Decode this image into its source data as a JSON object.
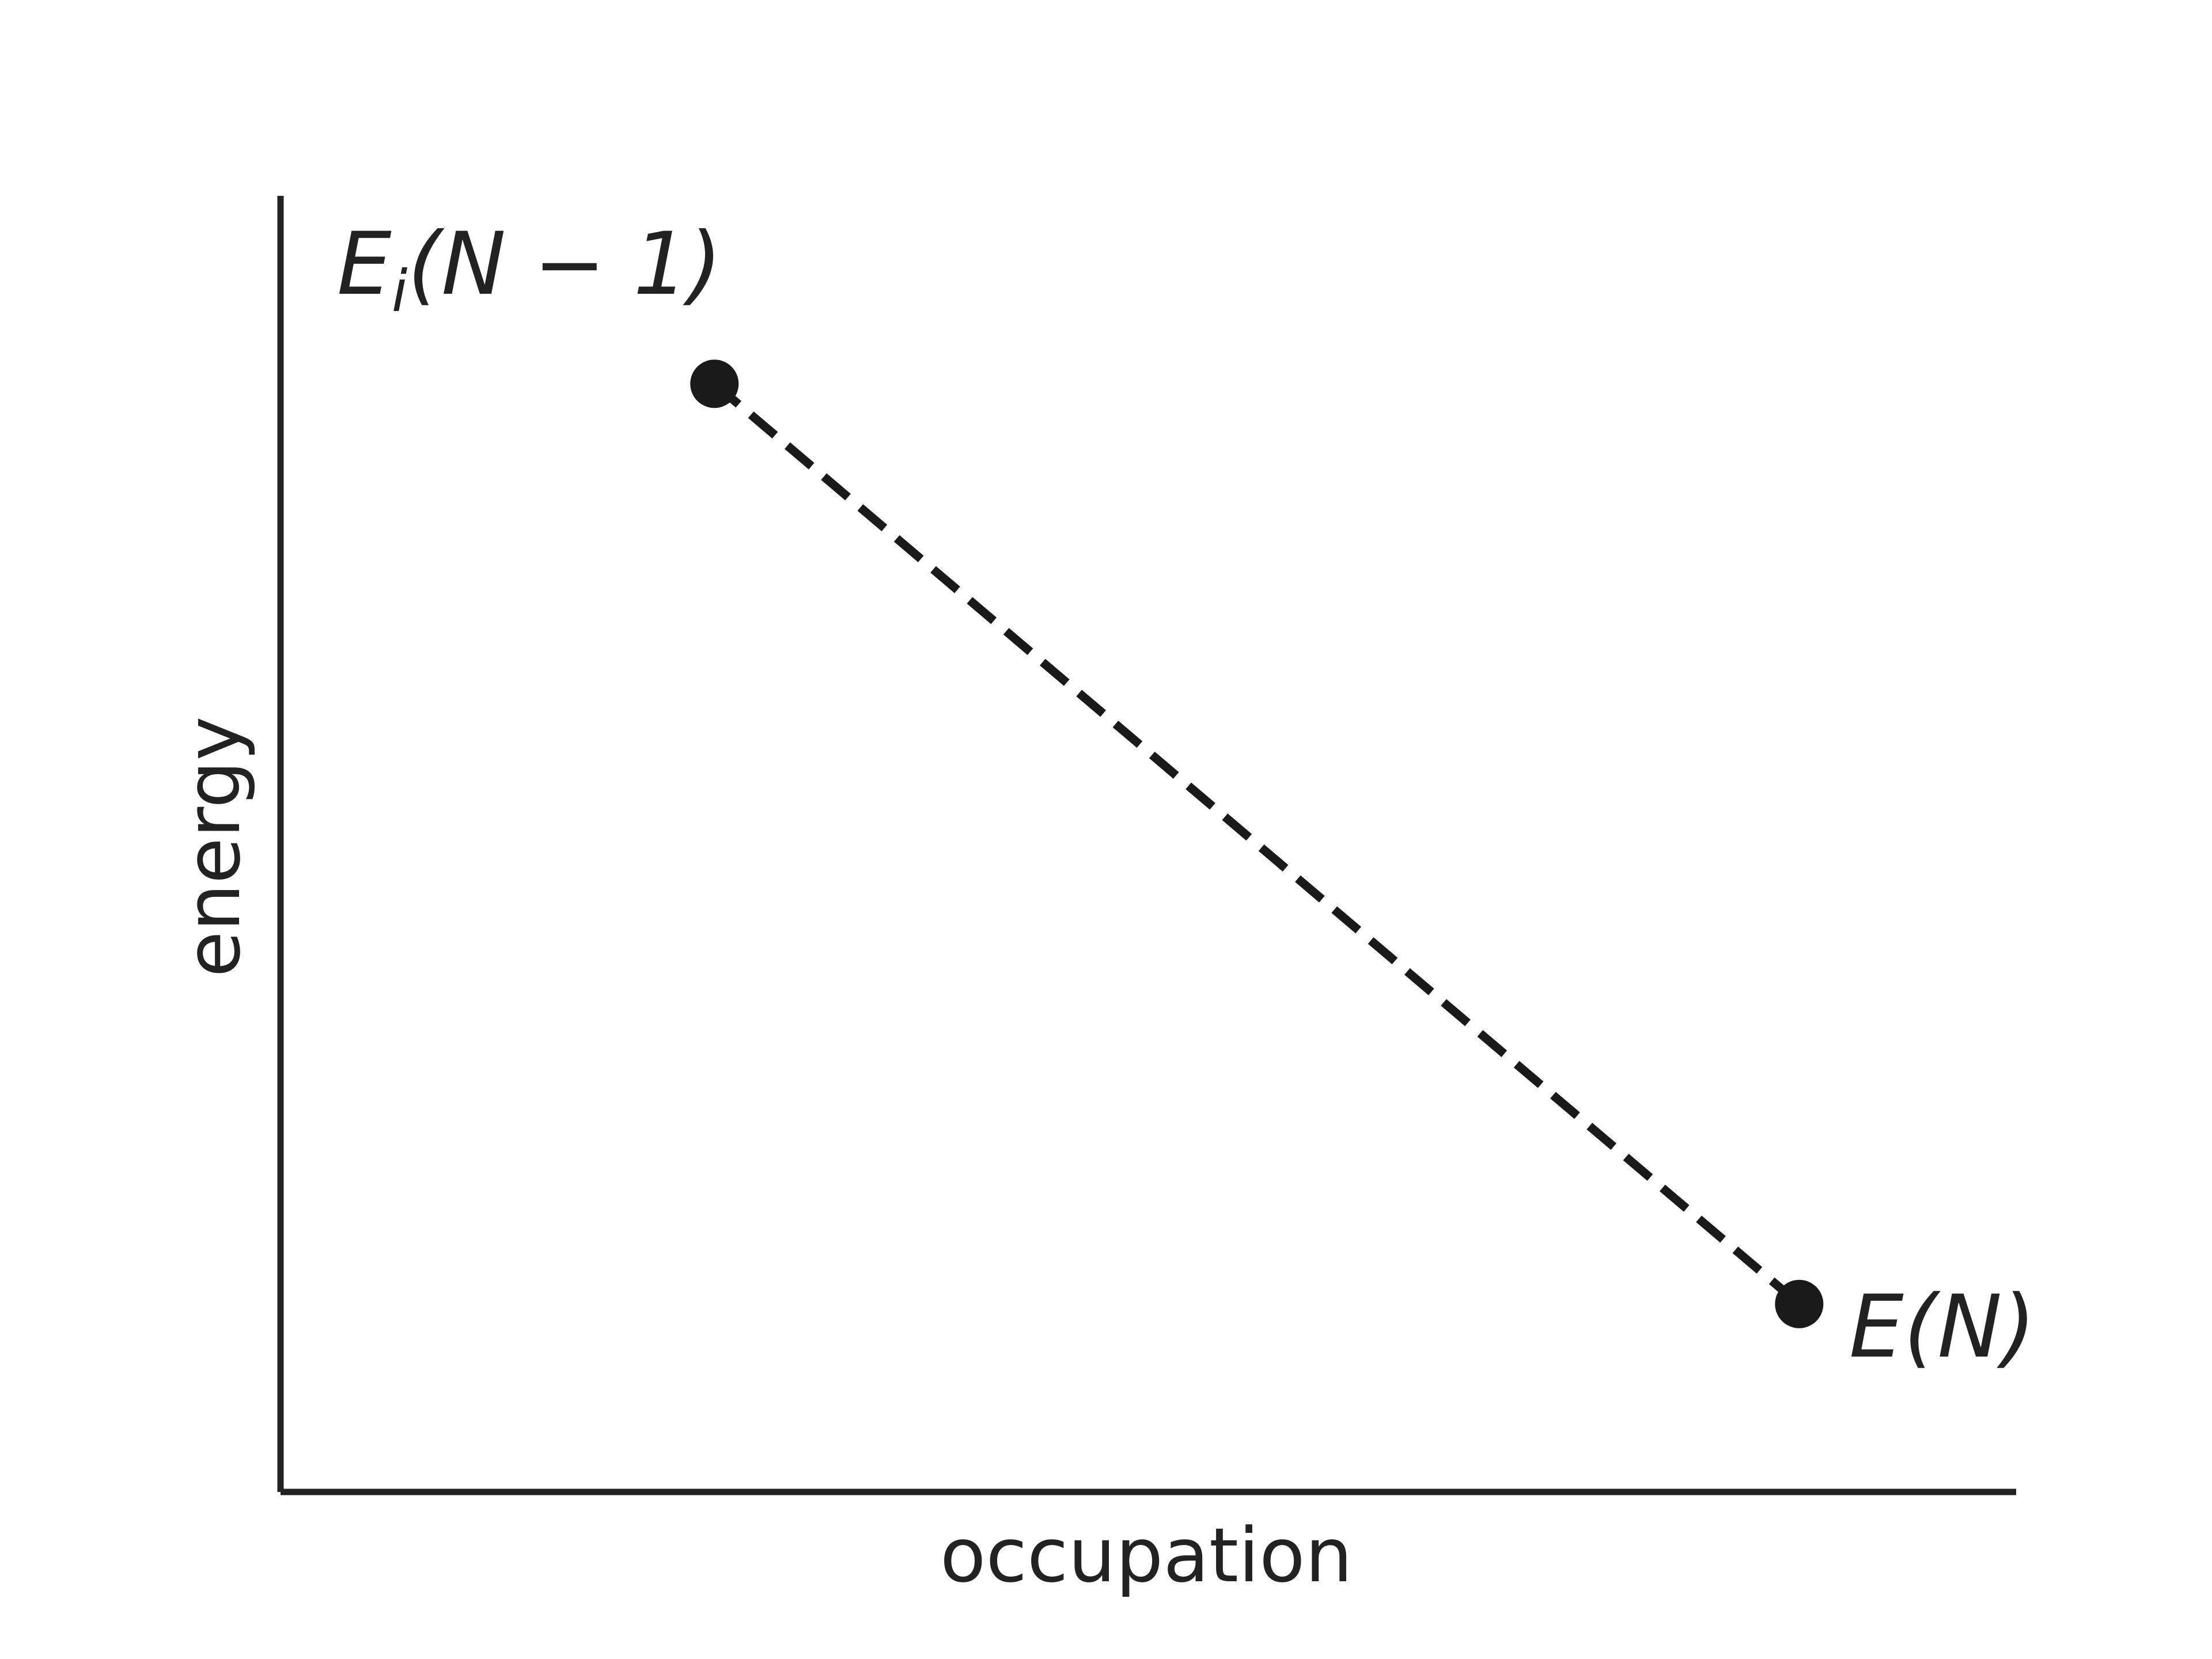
{
  "chart_data": {
    "type": "line",
    "xlabel": "occupation",
    "ylabel": "energy",
    "series": [
      {
        "x": [
          0.25,
          0.875
        ],
        "y": [
          0.855,
          0.145
        ],
        "line_style": "dashed",
        "markers": "filled-circle"
      }
    ],
    "points": [
      {
        "label_main": "E",
        "label_sub": "i",
        "label_rest": "(N − 1)",
        "x": 0.25,
        "y": 0.855,
        "label_position": "above-left"
      },
      {
        "label_main": "E",
        "label_sub": "",
        "label_rest": "(N)",
        "x": 0.875,
        "y": 0.145,
        "label_position": "right"
      }
    ],
    "xlim": [
      0,
      1
    ],
    "ylim": [
      0,
      1
    ],
    "ticks": false,
    "grid": false,
    "spines": [
      "left",
      "bottom"
    ],
    "colors": {
      "line": "#1a1a1a",
      "axes": "#222222",
      "text": "#222222"
    }
  }
}
